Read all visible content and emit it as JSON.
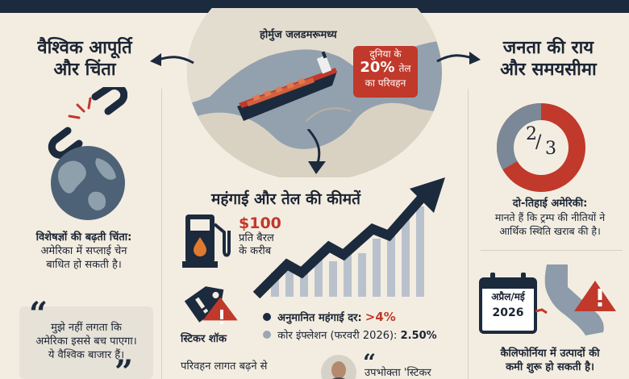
{
  "colors": {
    "navy": "#1c2a3d",
    "red": "#c0392b",
    "cream": "#f3ede1",
    "grey": "#7b8898"
  },
  "map": {
    "label": "होर्मुज जलडमरूमध्य",
    "callout": {
      "line1": "दुनिया के",
      "pct": "20%",
      "line1b": "तेल",
      "line2": "का परिवहन"
    }
  },
  "left": {
    "title_line1": "वैश्विक आपूर्ति",
    "title_line2": "और चिंता",
    "concern_bold": "विशेषज्ञों की बढ़ती चिंता:",
    "concern_line1": "अमेरिका में सप्लाई चेन",
    "concern_line2": "बाधित हो सकती है।",
    "quote_line1": "मुझे नहीं लगता कि",
    "quote_line2": "अमेरिका इससे बच पाएगा।",
    "quote_line3": "ये वैश्विक बाजार हैं।"
  },
  "center": {
    "title": "महंगाई और तेल की कीमतें",
    "price": "$100",
    "price_sub1": "प्रति बैरल",
    "price_sub2": "के करीब",
    "sticker_label": "स्टिकर शॉक",
    "inflation_label": "अनुमानित महंगाई दर:",
    "inflation_value": ">4%",
    "core_label": "कोर इंफ्लेशन (फरवरी 2026):",
    "core_value": "2.50%",
    "transport_line1": "परिवहन लागत बढ़ने से",
    "consumer_quote": "उपभोक्ता 'स्टिकर"
  },
  "right": {
    "title_line1": "जनता की राय",
    "title_line2": "और समयसीमा",
    "fraction_num": "2",
    "fraction_den": "3",
    "pie_fraction": 0.667,
    "opinion_bold": "दो-तिहाई अमेरिकी:",
    "opinion_line1": "मानते हैं कि ट्रम्प की नीतियों ने",
    "opinion_line2": "आर्थिक स्थिति खराब की है।",
    "calendar_month": "अप्रैल/मई",
    "calendar_year": "2026",
    "cal_line1": "कैलिफोर्निया में उत्पादों की",
    "cal_line2": "कमी शुरू हो सकती है।"
  }
}
